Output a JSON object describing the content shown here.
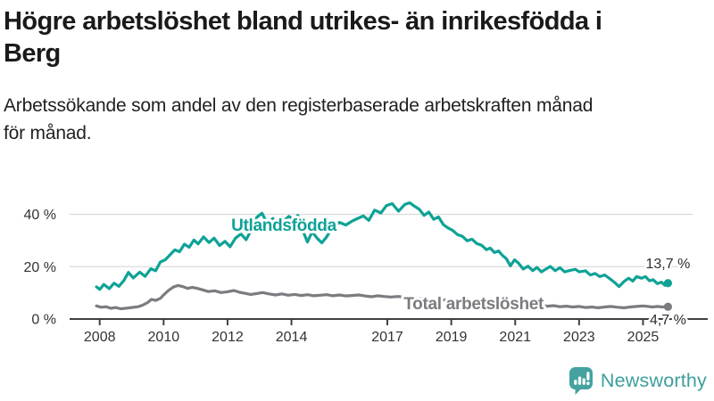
{
  "header": {
    "title": "Högre arbetslöshet bland utrikes- än inrikesfödda i Berg",
    "title_lines": [
      "Högre arbetslöshet bland utrikes- än inrikesfödda i",
      "Berg"
    ],
    "subtitle": "Arbetssökande som andel av den registerbaserade arbetskraften månad för månad.",
    "subtitle_lines": [
      "Arbetssökande som andel av den registerbaserade arbetskraften månad",
      "för månad."
    ]
  },
  "branding": {
    "logo_text": "Newsworthy",
    "logo_icon": "speech-bubble-bar-chart",
    "logo_color": "#45a2a0"
  },
  "colors": {
    "foreign_born_line": "#0ea296",
    "total_line": "#7b7b80",
    "axis": "#404040",
    "grid": "#dbdbdb",
    "tick_text": "#333333",
    "end_label_text": "#2e2e2e"
  },
  "chart_data": {
    "type": "line",
    "unit": "%",
    "xlim": [
      2007.06,
      2026.55
    ],
    "ylim": [
      0,
      50.4
    ],
    "grid": "horizontal-only",
    "legend_position": "inline-labels",
    "x_ticks": [
      2008,
      2010,
      2012,
      2014,
      2017,
      2019,
      2021,
      2023,
      2025
    ],
    "x_tick_labels": [
      "2008",
      "2010",
      "2012",
      "2014",
      "2017",
      "2019",
      "2021",
      "2023",
      "2025"
    ],
    "y_ticks": [
      0,
      20,
      40
    ],
    "y_tick_labels": [
      "0 %",
      "20 %",
      "40 %"
    ],
    "series": [
      {
        "name": "Total arbetslöshet",
        "color": "#7b7b80",
        "end_label": "4,7 %",
        "end_value": 4.7,
        "label_pos": {
          "t": 2019.7,
          "v": 5.96
        },
        "end_label_side": "below",
        "points": [
          [
            2007.9,
            5.0
          ],
          [
            2008.05,
            4.5
          ],
          [
            2008.2,
            4.7
          ],
          [
            2008.35,
            4.1
          ],
          [
            2008.5,
            4.4
          ],
          [
            2008.65,
            3.9
          ],
          [
            2008.8,
            4.1
          ],
          [
            2009.0,
            4.4
          ],
          [
            2009.2,
            4.7
          ],
          [
            2009.35,
            5.3
          ],
          [
            2009.5,
            6.3
          ],
          [
            2009.62,
            7.5
          ],
          [
            2009.75,
            7.1
          ],
          [
            2009.9,
            7.9
          ],
          [
            2010.0,
            9.2
          ],
          [
            2010.15,
            10.9
          ],
          [
            2010.3,
            12.2
          ],
          [
            2010.45,
            12.8
          ],
          [
            2010.6,
            12.4
          ],
          [
            2010.75,
            11.7
          ],
          [
            2010.9,
            12.1
          ],
          [
            2011.05,
            11.7
          ],
          [
            2011.2,
            11.2
          ],
          [
            2011.4,
            10.5
          ],
          [
            2011.6,
            10.8
          ],
          [
            2011.8,
            10.1
          ],
          [
            2012.0,
            10.4
          ],
          [
            2012.2,
            10.9
          ],
          [
            2012.38,
            10.2
          ],
          [
            2012.55,
            9.8
          ],
          [
            2012.72,
            9.4
          ],
          [
            2012.9,
            9.7
          ],
          [
            2013.1,
            10.1
          ],
          [
            2013.3,
            9.6
          ],
          [
            2013.5,
            9.2
          ],
          [
            2013.7,
            9.6
          ],
          [
            2013.9,
            9.1
          ],
          [
            2014.1,
            9.4
          ],
          [
            2014.3,
            9.0
          ],
          [
            2014.5,
            9.3
          ],
          [
            2014.7,
            8.9
          ],
          [
            2014.9,
            9.1
          ],
          [
            2015.1,
            9.3
          ],
          [
            2015.3,
            8.9
          ],
          [
            2015.5,
            9.2
          ],
          [
            2015.7,
            8.8
          ],
          [
            2015.9,
            9.0
          ],
          [
            2016.1,
            9.2
          ],
          [
            2016.3,
            8.8
          ],
          [
            2016.5,
            8.5
          ],
          [
            2016.7,
            8.9
          ],
          [
            2016.9,
            8.6
          ],
          [
            2017.1,
            8.4
          ],
          [
            2017.35,
            8.6
          ],
          [
            2017.6,
            8.2
          ],
          [
            2017.85,
            7.9
          ],
          [
            2018.1,
            7.7
          ],
          [
            2018.4,
            7.5
          ],
          [
            2018.7,
            7.3
          ],
          [
            2019.0,
            7.2
          ],
          [
            2019.3,
            7.0
          ],
          [
            2019.6,
            6.9
          ],
          [
            2019.9,
            7.0
          ],
          [
            2020.2,
            7.4
          ],
          [
            2020.45,
            7.7
          ],
          [
            2020.7,
            7.3
          ],
          [
            2021.0,
            6.6
          ],
          [
            2021.3,
            6.0
          ],
          [
            2021.55,
            5.5
          ],
          [
            2021.8,
            5.1
          ],
          [
            2022.0,
            4.9
          ],
          [
            2022.2,
            5.1
          ],
          [
            2022.4,
            4.7
          ],
          [
            2022.6,
            4.9
          ],
          [
            2022.8,
            4.6
          ],
          [
            2023.0,
            4.8
          ],
          [
            2023.2,
            4.4
          ],
          [
            2023.4,
            4.6
          ],
          [
            2023.6,
            4.3
          ],
          [
            2023.8,
            4.6
          ],
          [
            2024.0,
            4.8
          ],
          [
            2024.2,
            4.5
          ],
          [
            2024.4,
            4.3
          ],
          [
            2024.6,
            4.6
          ],
          [
            2024.8,
            4.8
          ],
          [
            2025.0,
            5.0
          ],
          [
            2025.15,
            4.8
          ],
          [
            2025.3,
            4.6
          ],
          [
            2025.45,
            4.8
          ],
          [
            2025.6,
            4.6
          ],
          [
            2025.78,
            4.7
          ]
        ]
      },
      {
        "name": "Utlandsfödda",
        "color": "#0ea296",
        "end_label": "13,7 %",
        "end_value": 13.7,
        "label_pos": {
          "t": 2013.76,
          "v": 35.9
        },
        "end_label_side": "above",
        "points": [
          [
            2007.9,
            12.3
          ],
          [
            2008.0,
            11.3
          ],
          [
            2008.13,
            13.2
          ],
          [
            2008.3,
            11.6
          ],
          [
            2008.45,
            13.7
          ],
          [
            2008.6,
            12.5
          ],
          [
            2008.75,
            14.6
          ],
          [
            2008.9,
            17.8
          ],
          [
            2009.05,
            15.7
          ],
          [
            2009.25,
            17.9
          ],
          [
            2009.42,
            16.3
          ],
          [
            2009.6,
            19.2
          ],
          [
            2009.75,
            18.4
          ],
          [
            2009.9,
            21.8
          ],
          [
            2010.05,
            22.6
          ],
          [
            2010.2,
            24.5
          ],
          [
            2010.35,
            26.4
          ],
          [
            2010.5,
            25.7
          ],
          [
            2010.65,
            28.6
          ],
          [
            2010.8,
            27.4
          ],
          [
            2010.95,
            30.2
          ],
          [
            2011.08,
            28.7
          ],
          [
            2011.25,
            31.4
          ],
          [
            2011.42,
            29.2
          ],
          [
            2011.58,
            30.9
          ],
          [
            2011.75,
            28.1
          ],
          [
            2011.92,
            29.7
          ],
          [
            2012.08,
            27.6
          ],
          [
            2012.25,
            30.9
          ],
          [
            2012.42,
            32.5
          ],
          [
            2012.58,
            30.3
          ],
          [
            2012.75,
            34.1
          ],
          [
            2012.92,
            38.9
          ],
          [
            2013.08,
            40.4
          ],
          [
            2013.25,
            36.4
          ],
          [
            2013.42,
            38.4
          ],
          [
            2013.58,
            33.9
          ],
          [
            2013.75,
            37.4
          ],
          [
            2013.92,
            39.2
          ],
          [
            2014.08,
            37.9
          ],
          [
            2014.2,
            39.6
          ],
          [
            2014.35,
            33.9
          ],
          [
            2014.5,
            29.4
          ],
          [
            2014.65,
            33.4
          ],
          [
            2014.8,
            30.9
          ],
          [
            2014.95,
            29.1
          ],
          [
            2015.1,
            31.4
          ],
          [
            2015.3,
            35.4
          ],
          [
            2015.5,
            36.9
          ],
          [
            2015.7,
            35.9
          ],
          [
            2015.9,
            37.4
          ],
          [
            2016.05,
            38.3
          ],
          [
            2016.25,
            39.4
          ],
          [
            2016.42,
            37.7
          ],
          [
            2016.6,
            41.6
          ],
          [
            2016.8,
            40.5
          ],
          [
            2016.97,
            43.3
          ],
          [
            2017.15,
            44.1
          ],
          [
            2017.35,
            41.2
          ],
          [
            2017.55,
            43.8
          ],
          [
            2017.7,
            44.4
          ],
          [
            2017.85,
            43.1
          ],
          [
            2018.0,
            41.9
          ],
          [
            2018.15,
            39.6
          ],
          [
            2018.3,
            40.9
          ],
          [
            2018.45,
            38.1
          ],
          [
            2018.6,
            39.0
          ],
          [
            2018.75,
            36.1
          ],
          [
            2018.9,
            34.8
          ],
          [
            2019.05,
            33.8
          ],
          [
            2019.2,
            32.2
          ],
          [
            2019.35,
            31.6
          ],
          [
            2019.5,
            29.9
          ],
          [
            2019.65,
            30.5
          ],
          [
            2019.8,
            28.8
          ],
          [
            2019.95,
            28.2
          ],
          [
            2020.1,
            26.5
          ],
          [
            2020.22,
            27.1
          ],
          [
            2020.35,
            25.4
          ],
          [
            2020.48,
            26.0
          ],
          [
            2020.6,
            24.3
          ],
          [
            2020.72,
            23.1
          ],
          [
            2020.85,
            20.3
          ],
          [
            2020.98,
            22.6
          ],
          [
            2021.1,
            21.4
          ],
          [
            2021.25,
            19.1
          ],
          [
            2021.4,
            20.2
          ],
          [
            2021.55,
            18.5
          ],
          [
            2021.68,
            19.7
          ],
          [
            2021.82,
            18.0
          ],
          [
            2021.95,
            19.0
          ],
          [
            2022.1,
            20.1
          ],
          [
            2022.25,
            18.5
          ],
          [
            2022.4,
            19.6
          ],
          [
            2022.55,
            18.0
          ],
          [
            2022.72,
            18.6
          ],
          [
            2022.88,
            19.0
          ],
          [
            2023.0,
            18.0
          ],
          [
            2023.2,
            18.4
          ],
          [
            2023.35,
            16.8
          ],
          [
            2023.5,
            17.4
          ],
          [
            2023.65,
            16.2
          ],
          [
            2023.8,
            16.8
          ],
          [
            2023.95,
            15.5
          ],
          [
            2024.1,
            14.1
          ],
          [
            2024.25,
            12.4
          ],
          [
            2024.42,
            14.5
          ],
          [
            2024.55,
            15.6
          ],
          [
            2024.68,
            14.5
          ],
          [
            2024.8,
            16.2
          ],
          [
            2024.95,
            15.6
          ],
          [
            2025.08,
            16.2
          ],
          [
            2025.2,
            14.6
          ],
          [
            2025.32,
            15.0
          ],
          [
            2025.45,
            13.5
          ],
          [
            2025.58,
            14.1
          ],
          [
            2025.68,
            12.9
          ],
          [
            2025.78,
            13.7
          ]
        ]
      }
    ]
  }
}
